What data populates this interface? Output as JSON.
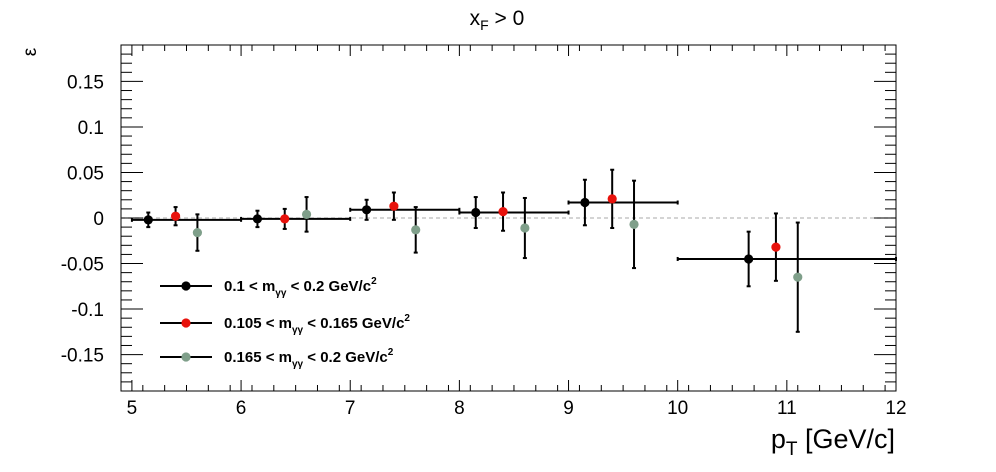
{
  "chart_data": {
    "type": "scatter",
    "title": {
      "main": "x",
      "sub": "F",
      "rest": " > 0"
    },
    "xlabel": {
      "main": "p",
      "sub": "T",
      "rest": " [GeV/c]"
    },
    "ylabel": "ε",
    "xlim": [
      4.9,
      12
    ],
    "ylim": [
      -0.19,
      0.19
    ],
    "xticks": [
      "5",
      "6",
      "7",
      "8",
      "9",
      "10",
      "11",
      "12"
    ],
    "yticks": [
      "0.15",
      "0.1",
      "0.05",
      "0",
      "-0.05",
      "-0.1",
      "-0.15"
    ],
    "zero_line": true,
    "legend_position": "bottom-left",
    "series": [
      {
        "name": "0.1 < m_γγ < 0.2 GeV/c^2",
        "legend": {
          "pre": "0.1 < m",
          "sub": "γγ",
          "mid": " < 0.2 GeV/c",
          "sup": "2"
        },
        "color": "#000000",
        "points": [
          {
            "x": 5.15,
            "y": -0.002,
            "err": 0.008,
            "xlo": 5.0,
            "xhi": 6.0
          },
          {
            "x": 6.15,
            "y": -0.001,
            "err": 0.009,
            "xlo": 6.0,
            "xhi": 7.0
          },
          {
            "x": 7.15,
            "y": 0.009,
            "err": 0.011,
            "xlo": 7.0,
            "xhi": 8.0
          },
          {
            "x": 8.15,
            "y": 0.006,
            "err": 0.017,
            "xlo": 8.0,
            "xhi": 9.0
          },
          {
            "x": 9.15,
            "y": 0.017,
            "err": 0.025,
            "xlo": 9.0,
            "xhi": 10.0
          },
          {
            "x": 10.65,
            "y": -0.045,
            "err": 0.03,
            "xlo": 10.0,
            "xhi": 12.0
          }
        ]
      },
      {
        "name": "0.105 < m_γγ < 0.165 GeV/c^2",
        "legend": {
          "pre": "0.105 < m",
          "sub": "γγ",
          "mid": " < 0.165 GeV/c",
          "sup": "2"
        },
        "color": "#e8120c",
        "points": [
          {
            "x": 5.4,
            "y": 0.002,
            "err": 0.01
          },
          {
            "x": 6.4,
            "y": -0.001,
            "err": 0.011
          },
          {
            "x": 7.4,
            "y": 0.013,
            "err": 0.015
          },
          {
            "x": 8.4,
            "y": 0.007,
            "err": 0.021
          },
          {
            "x": 9.4,
            "y": 0.021,
            "err": 0.032
          },
          {
            "x": 10.9,
            "y": -0.032,
            "err": 0.037
          }
        ]
      },
      {
        "name": "0.165 < m_γγ < 0.2 GeV/c^2",
        "legend": {
          "pre": "0.165 < m",
          "sub": "γγ",
          "mid": " < 0.2 GeV/c",
          "sup": "2"
        },
        "color": "#7f9f8a",
        "points": [
          {
            "x": 5.6,
            "y": -0.016,
            "err": 0.02
          },
          {
            "x": 6.6,
            "y": 0.004,
            "err": 0.019
          },
          {
            "x": 7.6,
            "y": -0.013,
            "err": 0.025
          },
          {
            "x": 8.6,
            "y": -0.011,
            "err": 0.033
          },
          {
            "x": 9.6,
            "y": -0.007,
            "err": 0.048
          },
          {
            "x": 11.1,
            "y": -0.065,
            "err": 0.06
          }
        ]
      }
    ]
  }
}
